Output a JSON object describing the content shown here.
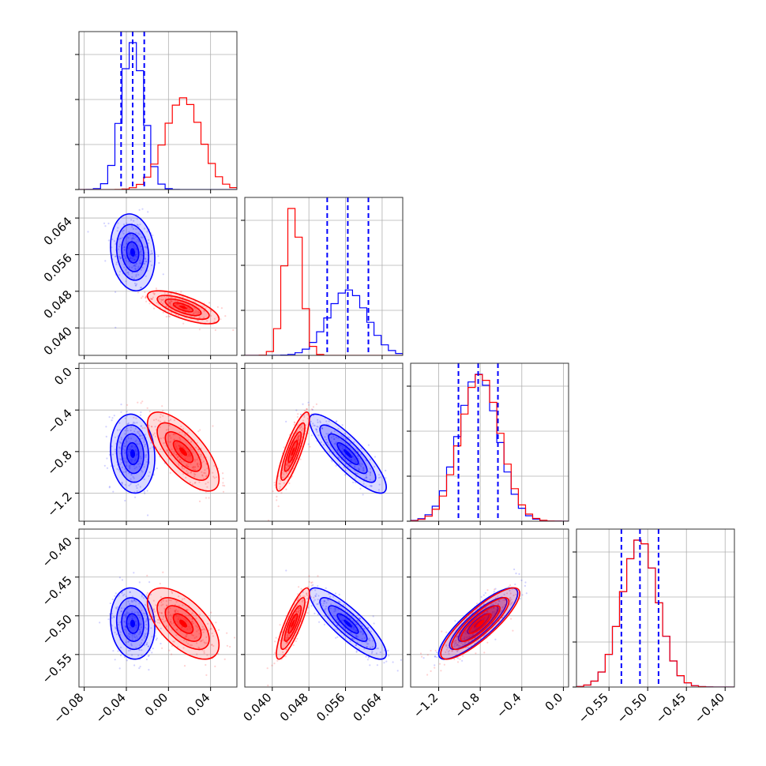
{
  "chart_data": {
    "type": "corner",
    "title": "",
    "colors": {
      "A": "#0000ff",
      "B": "#ff0000",
      "grid": "#b0b0b0",
      "background": "#ffffff"
    },
    "grid": true,
    "parameters": [
      {
        "range": [
          -0.085,
          0.065
        ],
        "ticks": [
          -0.08,
          -0.04,
          0.0,
          0.04
        ],
        "tick_labels": [
          "−0.08",
          "−0.04",
          "0.00",
          "0.04"
        ]
      },
      {
        "range": [
          0.034,
          0.0685
        ],
        "ticks": [
          0.04,
          0.048,
          0.056,
          0.064
        ],
        "tick_labels": [
          "0.040",
          "0.048",
          "0.056",
          "0.064"
        ]
      },
      {
        "range": [
          -1.47,
          0.05
        ],
        "ticks": [
          -1.2,
          -0.8,
          -0.4,
          0.0
        ],
        "tick_labels": [
          "−1.2",
          "−0.8",
          "−0.4",
          "0.0"
        ]
      },
      {
        "range": [
          -0.592,
          -0.388
        ],
        "ticks": [
          -0.55,
          -0.5,
          -0.45,
          -0.4
        ],
        "tick_labels": [
          "−0.55",
          "−0.50",
          "−0.45",
          "−0.40"
        ]
      }
    ],
    "series": [
      {
        "key": "A",
        "color": "#0000ff",
        "mean": [
          -0.034,
          0.0565,
          -0.82,
          -0.51
        ],
        "sd": [
          0.0105,
          0.0042,
          0.19,
          0.023
        ],
        "corr": [
          [
            1,
            -0.15,
            -0.1,
            -0.1
          ],
          [
            -0.15,
            1,
            -0.85,
            -0.85
          ],
          [
            -0.1,
            -0.85,
            1,
            0.85
          ],
          [
            -0.1,
            -0.85,
            0.85,
            1
          ]
        ],
        "quantiles": [
          [
            -0.045,
            -0.034,
            -0.023
          ],
          [
            0.052,
            0.0565,
            0.061
          ],
          [
            -1.01,
            -0.82,
            -0.63
          ],
          [
            -0.534,
            -0.51,
            -0.486
          ]
        ]
      },
      {
        "key": "B",
        "color": "#ff0000",
        "mean": [
          0.014,
          0.0445,
          -0.8,
          -0.51
        ],
        "sd": [
          0.017,
          0.0018,
          0.19,
          0.023
        ],
        "corr": [
          [
            1,
            -0.7,
            -0.7,
            -0.6
          ],
          [
            -0.7,
            1,
            0.85,
            0.85
          ],
          [
            -0.7,
            0.85,
            1,
            0.85
          ],
          [
            -0.6,
            0.85,
            0.85,
            1
          ]
        ]
      }
    ]
  }
}
